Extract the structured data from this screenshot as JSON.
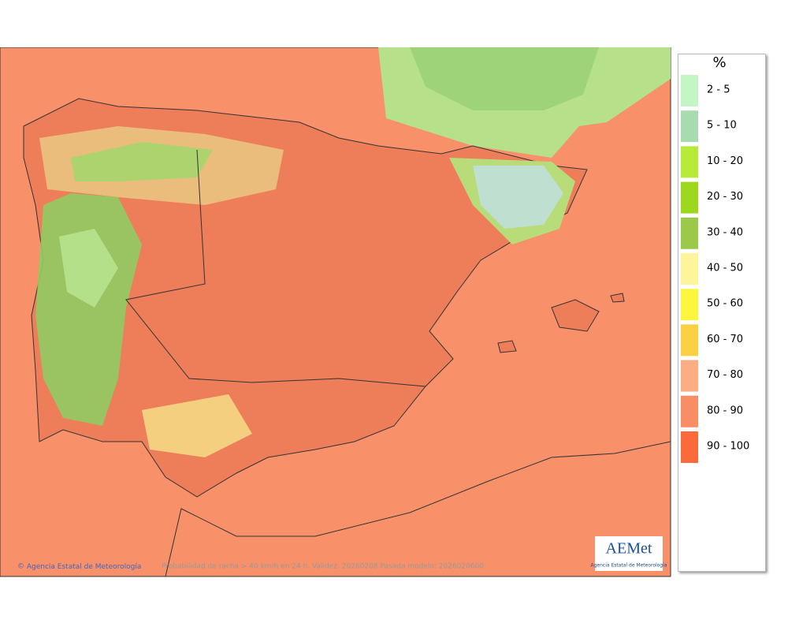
{
  "map": {
    "footer": {
      "credit": "Agencia Estatal de Meteorología",
      "caption": "Probabilidad de racha > 40 km/h en 24 h. Validez: 20260208 Pasada modelo: 2026020600"
    },
    "logo": {
      "mark": "AEMet",
      "text": "Agencia Estatal de Meteorología"
    },
    "legend": {
      "title": "%",
      "items": [
        {
          "label": "2 - 5",
          "color": "#c4f5c4"
        },
        {
          "label": "5 - 10",
          "color": "#a8dcb0"
        },
        {
          "label": "10 - 20",
          "color": "#b8ea3a"
        },
        {
          "label": "20 - 30",
          "color": "#9ed81e"
        },
        {
          "label": "30 - 40",
          "color": "#9cc94a"
        },
        {
          "label": "40 - 50",
          "color": "#fdf59a"
        },
        {
          "label": "50 - 60",
          "color": "#fdf63e"
        },
        {
          "label": "60 - 70",
          "color": "#fcd043"
        },
        {
          "label": "70 - 80",
          "color": "#fbad84"
        },
        {
          "label": "80 - 90",
          "color": "#f98e66"
        },
        {
          "label": "90 - 100",
          "color": "#fa6a3a"
        }
      ]
    }
  }
}
